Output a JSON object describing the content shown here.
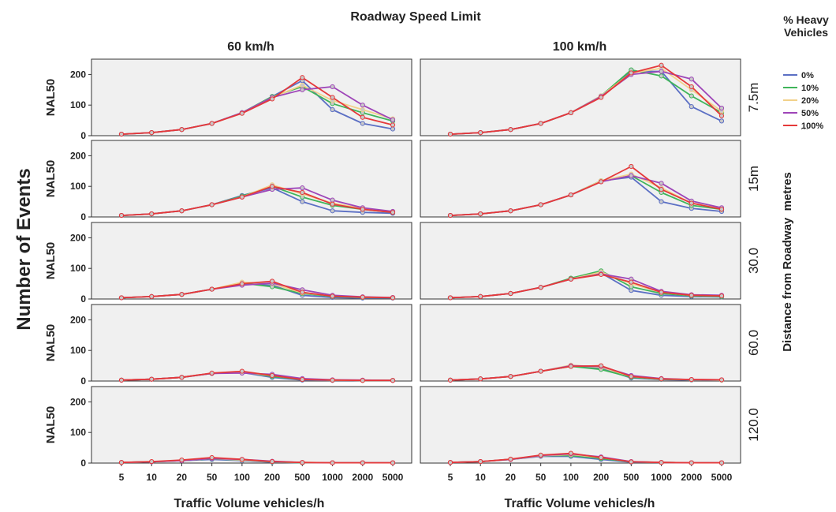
{
  "chart_data": {
    "type": "line",
    "title": "Roadway Speed Limit",
    "column_labels": [
      "60 km/h",
      "100 km/h"
    ],
    "row_labels": [
      "7.5m",
      "15m",
      "30.0",
      "60.0",
      "120.0"
    ],
    "row_axis_title": "Distance from Roadway  metres",
    "ylabel_panel": "NAL50",
    "ylabel_outer": "Number of Events",
    "xlabel": "Traffic Volume vehicles/h",
    "categories": [
      "5",
      "10",
      "20",
      "50",
      "100",
      "200",
      "500",
      "1000",
      "2000",
      "5000"
    ],
    "yticks": [
      "0",
      "100",
      "200"
    ],
    "ylim": [
      0,
      250
    ],
    "grid": false,
    "legend": {
      "title_line1": "% Heavy",
      "title_line2": "Vehicles",
      "placement": "right",
      "more": "...",
      "entries": [
        {
          "label": "0%",
          "color": "#5b6fc4"
        },
        {
          "label": "10%",
          "color": "#3fb55a"
        },
        {
          "label": "20%",
          "color": "#f2d18a"
        },
        {
          "label": "50%",
          "color": "#9e45b8"
        },
        {
          "label": "100%",
          "color": "#e5393a"
        }
      ]
    },
    "panels": [
      {
        "row": "7.5m",
        "column": "60 km/h",
        "series": [
          {
            "name": "0%",
            "values": [
              5,
              10,
              20,
              40,
              75,
              128,
              180,
              85,
              40,
              22
            ]
          },
          {
            "name": "10%",
            "values": [
              5,
              10,
              20,
              40,
              75,
              128,
              160,
              105,
              75,
              48
            ]
          },
          {
            "name": "20%",
            "values": [
              5,
              10,
              20,
              40,
              75,
              125,
              165,
              115,
              85,
              55
            ]
          },
          {
            "name": "50%",
            "values": [
              5,
              10,
              20,
              40,
              75,
              125,
              150,
              160,
              100,
              52
            ]
          },
          {
            "name": "100%",
            "values": [
              5,
              10,
              20,
              40,
              73,
              120,
              190,
              125,
              60,
              35
            ]
          }
        ]
      },
      {
        "row": "7.5m",
        "column": "100 km/h",
        "series": [
          {
            "name": "0%",
            "values": [
              5,
              10,
              20,
              40,
              75,
              130,
              210,
              210,
              95,
              48
            ]
          },
          {
            "name": "10%",
            "values": [
              5,
              10,
              20,
              40,
              75,
              130,
              215,
              195,
              130,
              75
            ]
          },
          {
            "name": "20%",
            "values": [
              5,
              10,
              20,
              40,
              75,
              130,
              205,
              220,
              150,
              80
            ]
          },
          {
            "name": "50%",
            "values": [
              5,
              10,
              20,
              40,
              75,
              128,
              200,
              210,
              185,
              90
            ]
          },
          {
            "name": "100%",
            "values": [
              5,
              10,
              20,
              40,
              75,
              125,
              205,
              230,
              160,
              65
            ]
          }
        ]
      },
      {
        "row": "15m",
        "column": "60 km/h",
        "series": [
          {
            "name": "0%",
            "values": [
              5,
              10,
              20,
              40,
              70,
              95,
              50,
              20,
              15,
              12
            ]
          },
          {
            "name": "10%",
            "values": [
              5,
              10,
              20,
              40,
              68,
              100,
              65,
              38,
              25,
              15
            ]
          },
          {
            "name": "20%",
            "values": [
              5,
              10,
              20,
              40,
              65,
              105,
              75,
              45,
              28,
              18
            ]
          },
          {
            "name": "50%",
            "values": [
              5,
              10,
              20,
              40,
              65,
              90,
              95,
              55,
              30,
              18
            ]
          },
          {
            "name": "100%",
            "values": [
              5,
              10,
              20,
              40,
              65,
              100,
              80,
              42,
              25,
              15
            ]
          }
        ]
      },
      {
        "row": "15m",
        "column": "100 km/h",
        "series": [
          {
            "name": "0%",
            "values": [
              5,
              10,
              20,
              40,
              72,
              118,
              130,
              50,
              28,
              18
            ]
          },
          {
            "name": "10%",
            "values": [
              5,
              10,
              20,
              40,
              72,
              118,
              135,
              80,
              38,
              25
            ]
          },
          {
            "name": "20%",
            "values": [
              5,
              10,
              20,
              40,
              72,
              118,
              140,
              95,
              45,
              28
            ]
          },
          {
            "name": "50%",
            "values": [
              5,
              10,
              20,
              40,
              72,
              115,
              135,
              110,
              52,
              30
            ]
          },
          {
            "name": "100%",
            "values": [
              5,
              10,
              20,
              40,
              72,
              115,
              165,
              90,
              45,
              25
            ]
          }
        ]
      },
      {
        "row": "30.0",
        "column": "60 km/h",
        "series": [
          {
            "name": "0%",
            "values": [
              4,
              8,
              15,
              32,
              50,
              45,
              12,
              5,
              3,
              3
            ]
          },
          {
            "name": "10%",
            "values": [
              4,
              8,
              15,
              32,
              52,
              40,
              18,
              8,
              5,
              4
            ]
          },
          {
            "name": "20%",
            "values": [
              4,
              8,
              15,
              32,
              55,
              50,
              20,
              10,
              6,
              5
            ]
          },
          {
            "name": "50%",
            "values": [
              4,
              8,
              15,
              32,
              45,
              52,
              30,
              12,
              7,
              5
            ]
          },
          {
            "name": "100%",
            "values": [
              4,
              8,
              15,
              32,
              50,
              58,
              22,
              9,
              6,
              4
            ]
          }
        ]
      },
      {
        "row": "30.0",
        "column": "100 km/h",
        "series": [
          {
            "name": "0%",
            "values": [
              4,
              8,
              18,
              38,
              65,
              85,
              28,
              12,
              8,
              7
            ]
          },
          {
            "name": "10%",
            "values": [
              4,
              8,
              18,
              38,
              68,
              92,
              40,
              18,
              10,
              8
            ]
          },
          {
            "name": "20%",
            "values": [
              4,
              8,
              18,
              38,
              65,
              88,
              50,
              22,
              12,
              10
            ]
          },
          {
            "name": "50%",
            "values": [
              4,
              8,
              18,
              38,
              65,
              82,
              65,
              25,
              14,
              12
            ]
          },
          {
            "name": "100%",
            "values": [
              4,
              8,
              18,
              38,
              65,
              80,
              55,
              22,
              12,
              10
            ]
          }
        ]
      },
      {
        "row": "60.0",
        "column": "60 km/h",
        "series": [
          {
            "name": "0%",
            "values": [
              3,
              6,
              12,
              25,
              28,
              12,
              3,
              2,
              2,
              2
            ]
          },
          {
            "name": "10%",
            "values": [
              3,
              6,
              12,
              25,
              30,
              15,
              5,
              3,
              2,
              2
            ]
          },
          {
            "name": "20%",
            "values": [
              3,
              6,
              12,
              25,
              28,
              18,
              6,
              3,
              2,
              2
            ]
          },
          {
            "name": "50%",
            "values": [
              3,
              6,
              12,
              25,
              26,
              22,
              8,
              4,
              3,
              2
            ]
          },
          {
            "name": "100%",
            "values": [
              3,
              6,
              12,
              26,
              32,
              18,
              5,
              3,
              2,
              2
            ]
          }
        ]
      },
      {
        "row": "60.0",
        "column": "100 km/h",
        "series": [
          {
            "name": "0%",
            "values": [
              3,
              7,
              15,
              32,
              50,
              42,
              10,
              5,
              3,
              3
            ]
          },
          {
            "name": "10%",
            "values": [
              3,
              7,
              15,
              32,
              48,
              38,
              12,
              6,
              4,
              3
            ]
          },
          {
            "name": "20%",
            "values": [
              3,
              7,
              15,
              32,
              52,
              45,
              15,
              7,
              4,
              3
            ]
          },
          {
            "name": "50%",
            "values": [
              3,
              7,
              15,
              32,
              50,
              48,
              18,
              8,
              5,
              4
            ]
          },
          {
            "name": "100%",
            "values": [
              3,
              7,
              15,
              32,
              48,
              50,
              15,
              7,
              5,
              4
            ]
          }
        ]
      },
      {
        "row": "120.0",
        "column": "60 km/h",
        "series": [
          {
            "name": "0%",
            "values": [
              2,
              4,
              8,
              12,
              8,
              3,
              1,
              1,
              1,
              1
            ]
          },
          {
            "name": "10%",
            "values": [
              2,
              4,
              8,
              14,
              10,
              4,
              1,
              1,
              1,
              1
            ]
          },
          {
            "name": "20%",
            "values": [
              2,
              4,
              8,
              15,
              10,
              5,
              2,
              1,
              1,
              1
            ]
          },
          {
            "name": "50%",
            "values": [
              2,
              4,
              8,
              15,
              12,
              6,
              2,
              1,
              1,
              1
            ]
          },
          {
            "name": "100%",
            "values": [
              2,
              5,
              10,
              18,
              12,
              5,
              2,
              1,
              1,
              1
            ]
          }
        ]
      },
      {
        "row": "120.0",
        "column": "100 km/h",
        "series": [
          {
            "name": "0%",
            "values": [
              2,
              5,
              12,
              22,
              22,
              12,
              3,
              2,
              1,
              1
            ]
          },
          {
            "name": "10%",
            "values": [
              2,
              5,
              12,
              24,
              25,
              15,
              4,
              2,
              1,
              1
            ]
          },
          {
            "name": "20%",
            "values": [
              2,
              5,
              12,
              24,
              28,
              18,
              5,
              2,
              1,
              1
            ]
          },
          {
            "name": "50%",
            "values": [
              2,
              5,
              12,
              25,
              30,
              20,
              5,
              2,
              1,
              1
            ]
          },
          {
            "name": "100%",
            "values": [
              2,
              5,
              13,
              26,
              32,
              18,
              4,
              2,
              1,
              1
            ]
          }
        ]
      }
    ]
  }
}
